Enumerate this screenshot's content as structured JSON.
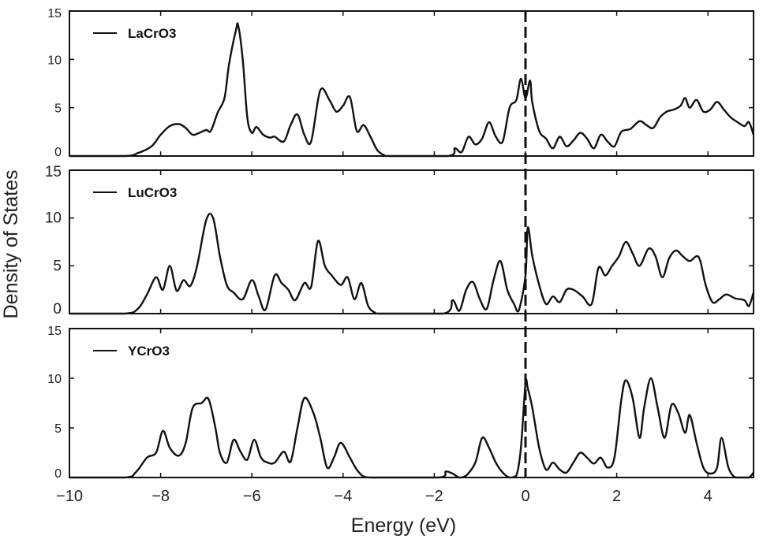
{
  "chart_data": {
    "type": "line",
    "xlabel": "Energy (eV)",
    "ylabel": "Density of States",
    "xlim": [
      -10,
      5
    ],
    "ylim": [
      0,
      15
    ],
    "x_ticks": [
      -10,
      -8,
      -6,
      -4,
      -2,
      0,
      2,
      4
    ],
    "x_tick_labels": [
      "−10",
      "−8",
      "−6",
      "−4",
      "−2",
      "0",
      "2",
      "4"
    ],
    "y_ticks": [
      0,
      5,
      10,
      15
    ],
    "y_tick_labels": [
      "0",
      "5",
      "10",
      "15"
    ],
    "fermi_level_line": {
      "x": 0,
      "style": "dashed"
    },
    "grid": false,
    "panels": [
      {
        "legend": "LaCrO3",
        "series": [
          {
            "name": "LaCrO3",
            "x": [
              -10,
              -8.8,
              -8.5,
              -8.2,
              -8.0,
              -7.8,
              -7.6,
              -7.45,
              -7.3,
              -7.15,
              -7.0,
              -6.9,
              -6.75,
              -6.6,
              -6.5,
              -6.35,
              -6.3,
              -6.2,
              -6.1,
              -6.0,
              -5.9,
              -5.75,
              -5.6,
              -5.5,
              -5.3,
              -5.15,
              -5.0,
              -4.85,
              -4.7,
              -4.5,
              -4.3,
              -4.15,
              -4.0,
              -3.85,
              -3.7,
              -3.55,
              -3.4,
              -3.25,
              -3.1,
              -3.0,
              -1.7,
              -1.55,
              -1.4,
              -1.25,
              -1.1,
              -0.95,
              -0.8,
              -0.65,
              -0.5,
              -0.35,
              -0.2,
              -0.1,
              0.0,
              0.1,
              0.15,
              0.3,
              0.45,
              0.6,
              0.75,
              0.9,
              1.05,
              1.2,
              1.35,
              1.5,
              1.65,
              1.8,
              1.95,
              2.1,
              2.3,
              2.5,
              2.65,
              2.8,
              2.95,
              3.1,
              3.25,
              3.4,
              3.5,
              3.6,
              3.75,
              3.9,
              4.05,
              4.2,
              4.35,
              4.5,
              4.65,
              4.8,
              4.9,
              5.0
            ],
            "y": [
              0,
              0,
              0.3,
              1.0,
              2.2,
              3.1,
              3.3,
              2.9,
              2.2,
              2.4,
              2.7,
              2.6,
              4.5,
              6.0,
              9.5,
              13.0,
              13.5,
              10.0,
              4.0,
              2.4,
              3.0,
              2.2,
              1.9,
              2.0,
              1.5,
              3.2,
              4.3,
              2.2,
              1.5,
              6.8,
              5.8,
              4.6,
              5.2,
              6.1,
              2.6,
              3.2,
              2.0,
              0.6,
              0.1,
              0,
              0,
              0.8,
              0.4,
              2.0,
              1.2,
              1.8,
              3.5,
              2.0,
              1.5,
              5.0,
              5.8,
              8.0,
              6.0,
              7.8,
              5.5,
              2.6,
              1.8,
              0.8,
              2.0,
              1.0,
              1.6,
              2.4,
              1.8,
              0.8,
              2.2,
              1.5,
              1.0,
              2.5,
              2.8,
              3.6,
              3.2,
              2.9,
              4.0,
              4.6,
              4.8,
              5.2,
              6.0,
              5.0,
              5.8,
              4.6,
              4.8,
              5.6,
              4.8,
              4.0,
              3.5,
              3.1,
              3.5,
              2.2
            ]
          }
        ]
      },
      {
        "legend": "LuCrO3",
        "series": [
          {
            "name": "LuCrO3",
            "x": [
              -10,
              -8.8,
              -8.5,
              -8.3,
              -8.1,
              -7.95,
              -7.8,
              -7.65,
              -7.5,
              -7.35,
              -7.2,
              -7.0,
              -6.85,
              -6.7,
              -6.55,
              -6.4,
              -6.2,
              -6.0,
              -5.85,
              -5.7,
              -5.5,
              -5.35,
              -5.2,
              -5.05,
              -4.85,
              -4.7,
              -4.55,
              -4.4,
              -4.25,
              -4.05,
              -3.9,
              -3.75,
              -3.6,
              -3.45,
              -3.3,
              -3.2,
              -1.8,
              -1.6,
              -1.45,
              -1.3,
              -1.15,
              -1.0,
              -0.85,
              -0.7,
              -0.55,
              -0.4,
              -0.25,
              -0.15,
              0.0,
              0.05,
              0.15,
              0.3,
              0.45,
              0.6,
              0.75,
              0.9,
              1.05,
              1.25,
              1.45,
              1.6,
              1.75,
              1.9,
              2.05,
              2.2,
              2.35,
              2.5,
              2.7,
              2.85,
              3.0,
              3.15,
              3.3,
              3.45,
              3.6,
              3.8,
              3.95,
              4.1,
              4.25,
              4.4,
              4.6,
              4.8,
              4.9,
              5.0
            ],
            "y": [
              0,
              0,
              0.5,
              2.0,
              3.8,
              2.5,
              5.0,
              2.4,
              3.5,
              2.9,
              5.0,
              9.8,
              10.0,
              6.0,
              3.0,
              2.2,
              1.5,
              3.5,
              1.8,
              0.4,
              4.0,
              3.2,
              2.5,
              1.4,
              3.2,
              2.8,
              7.6,
              5.0,
              4.0,
              3.0,
              3.8,
              1.5,
              3.2,
              0.8,
              0.1,
              0,
              0,
              1.4,
              0.3,
              2.5,
              3.3,
              1.5,
              0.5,
              3.5,
              5.5,
              2.5,
              1.0,
              0.3,
              4.0,
              9.0,
              6.0,
              3.0,
              1.0,
              1.8,
              1.2,
              2.5,
              2.5,
              1.8,
              1.0,
              4.8,
              4.0,
              5.0,
              6.0,
              7.5,
              6.3,
              5.0,
              6.8,
              6.0,
              3.8,
              5.8,
              6.6,
              6.0,
              5.5,
              5.9,
              3.0,
              1.2,
              1.5,
              2.0,
              1.6,
              1.4,
              0.8,
              2.2
            ]
          }
        ]
      },
      {
        "legend": "YCrO3",
        "series": [
          {
            "name": "YCrO3",
            "x": [
              -10,
              -8.8,
              -8.55,
              -8.3,
              -8.1,
              -7.95,
              -7.8,
              -7.6,
              -7.45,
              -7.3,
              -7.1,
              -6.95,
              -6.8,
              -6.7,
              -6.55,
              -6.4,
              -6.25,
              -6.1,
              -5.95,
              -5.8,
              -5.65,
              -5.5,
              -5.3,
              -5.15,
              -5.0,
              -4.85,
              -4.65,
              -4.5,
              -4.35,
              -4.2,
              -4.05,
              -3.85,
              -3.7,
              -3.55,
              -3.4,
              -3.2,
              -1.9,
              -1.75,
              -1.6,
              -1.45,
              -1.3,
              -1.1,
              -0.95,
              -0.8,
              -0.65,
              -0.5,
              -0.35,
              -0.2,
              -0.1,
              0.0,
              0.05,
              0.15,
              0.3,
              0.45,
              0.6,
              0.75,
              0.9,
              1.05,
              1.2,
              1.35,
              1.5,
              1.65,
              1.8,
              1.95,
              2.1,
              2.2,
              2.35,
              2.5,
              2.6,
              2.75,
              2.9,
              3.05,
              3.2,
              3.35,
              3.5,
              3.6,
              3.75,
              3.9,
              4.05,
              4.2,
              4.3,
              4.45,
              4.6,
              4.75,
              4.9,
              5.0
            ],
            "y": [
              0,
              0,
              0.5,
              2.0,
              2.5,
              4.7,
              3.0,
              2.2,
              3.5,
              7.0,
              7.5,
              7.9,
              5.0,
              2.5,
              1.5,
              3.8,
              2.6,
              1.8,
              3.8,
              2.0,
              1.5,
              1.5,
              2.6,
              1.6,
              5.0,
              8.0,
              6.5,
              4.0,
              1.0,
              2.0,
              3.5,
              2.0,
              0.8,
              0.1,
              0,
              0,
              0,
              0.6,
              0.4,
              0,
              0.2,
              1.5,
              4.0,
              3.0,
              1.5,
              0.5,
              0,
              0.2,
              3.0,
              9.5,
              9.0,
              7.0,
              3.0,
              0.8,
              1.5,
              0.8,
              0.5,
              1.5,
              2.5,
              2.0,
              1.4,
              2.0,
              1.0,
              2.0,
              7.8,
              9.8,
              8.0,
              4.0,
              7.0,
              10.0,
              7.0,
              4.0,
              7.3,
              6.5,
              4.5,
              6.3,
              3.5,
              1.0,
              0.4,
              1.0,
              4.0,
              1.0,
              0.0,
              0.0,
              0.0,
              0.5
            ]
          }
        ]
      }
    ]
  }
}
